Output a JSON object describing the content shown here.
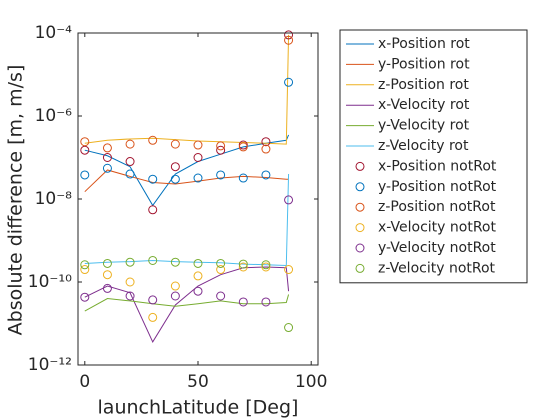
{
  "chart_data": {
    "type": "line",
    "xlabel": "launchLatitude [Deg]",
    "ylabel": "Absolute difference [m, m/s]",
    "log_y": true,
    "xlim": [
      -3,
      103
    ],
    "ylim": [
      1e-12,
      0.0001
    ],
    "xticks": [
      0,
      50,
      100
    ],
    "yticks": [
      {
        "value": 1e-12,
        "label": "10⁻¹²"
      },
      {
        "value": 1e-10,
        "label": "10⁻¹⁰"
      },
      {
        "value": 1e-08,
        "label": "10⁻⁸"
      },
      {
        "value": 1e-06,
        "label": "10⁻⁶"
      },
      {
        "value": 0.0001,
        "label": "10⁻⁴"
      }
    ],
    "legend": "outside-right",
    "series": [
      {
        "name": "x-Position rot",
        "color": "#0072BD",
        "style": "line",
        "x": [
          0,
          10,
          20,
          30,
          40,
          50,
          60,
          70,
          80,
          89,
          90
        ],
        "values": [
          1.5e-07,
          1.1e-07,
          6e-08,
          7e-09,
          4e-08,
          8e-08,
          1.2e-07,
          1.8e-07,
          2.2e-07,
          2.6e-07,
          3.5e-07
        ]
      },
      {
        "name": "y-Position rot",
        "color": "#D95319",
        "style": "line",
        "x": [
          0,
          10,
          20,
          30,
          40,
          50,
          60,
          70,
          80,
          89,
          90
        ],
        "values": [
          1.5e-08,
          5e-08,
          3.5e-08,
          2.5e-08,
          2.3e-08,
          2.7e-08,
          3.2e-08,
          3.5e-08,
          3.3e-08,
          3e-08,
          3e-08
        ]
      },
      {
        "name": "z-Position rot",
        "color": "#EDB120",
        "style": "line",
        "x": [
          0,
          10,
          20,
          30,
          40,
          50,
          60,
          70,
          80,
          89,
          90
        ],
        "values": [
          2.2e-07,
          2.6e-07,
          2.8e-07,
          2.9e-07,
          2.7e-07,
          2.5e-07,
          2.4e-07,
          2.3e-07,
          2.2e-07,
          2.1e-07,
          9e-05
        ]
      },
      {
        "name": "x-Velocity rot",
        "color": "#7E2F8E",
        "style": "line",
        "x": [
          0,
          10,
          20,
          30,
          40,
          50,
          60,
          70,
          80,
          89,
          90
        ],
        "values": [
          4.3e-11,
          8e-11,
          5.5e-11,
          3.6e-12,
          2.8e-11,
          8e-11,
          1.5e-10,
          2.2e-10,
          2.3e-10,
          2.2e-10,
          6e-11
        ]
      },
      {
        "name": "y-Velocity rot",
        "color": "#77AC30",
        "style": "line",
        "x": [
          0,
          10,
          20,
          30,
          40,
          50,
          60,
          70,
          80,
          89,
          90
        ],
        "values": [
          2e-11,
          4e-11,
          3.5e-11,
          3e-11,
          2.6e-11,
          3e-11,
          3.5e-11,
          3e-11,
          3e-11,
          3.2e-11,
          5e-11
        ]
      },
      {
        "name": "z-Velocity rot",
        "color": "#4DBEEE",
        "style": "line",
        "x": [
          0,
          10,
          20,
          30,
          40,
          50,
          60,
          70,
          80,
          89,
          90
        ],
        "values": [
          2.8e-10,
          3e-10,
          3.1e-10,
          3.3e-10,
          3.1e-10,
          3e-10,
          2.9e-10,
          2.7e-10,
          2.6e-10,
          2.5e-10,
          4e-08
        ]
      },
      {
        "name": "x-Position notRot",
        "color": "#A2142F",
        "style": "marker",
        "x": [
          0,
          10,
          20,
          30,
          40,
          50,
          60,
          70,
          80,
          90
        ],
        "values": [
          1.5e-07,
          1e-07,
          8e-08,
          5.5e-09,
          6e-08,
          1e-07,
          1.5e-07,
          2e-07,
          2.4e-07,
          9e-05
        ]
      },
      {
        "name": "y-Position notRot",
        "color": "#0072BD",
        "style": "marker",
        "x": [
          0,
          10,
          20,
          30,
          40,
          50,
          60,
          70,
          80,
          90
        ],
        "values": [
          3.8e-08,
          5.5e-08,
          4e-08,
          3e-08,
          3e-08,
          3.2e-08,
          3.8e-08,
          3.2e-08,
          3.8e-08,
          6.5e-06
        ]
      },
      {
        "name": "z-Position notRot",
        "color": "#D95319",
        "style": "marker",
        "x": [
          0,
          10,
          20,
          30,
          40,
          50,
          60,
          70,
          80,
          90
        ],
        "values": [
          2.4e-07,
          1.7e-07,
          2.1e-07,
          2.6e-07,
          2.1e-07,
          2e-07,
          1.9e-07,
          1.8e-07,
          1.6e-07,
          6.7e-05
        ]
      },
      {
        "name": "x-Velocity notRot",
        "color": "#EDB120",
        "style": "marker",
        "x": [
          0,
          10,
          20,
          30,
          40,
          50,
          60,
          70,
          80,
          90
        ],
        "values": [
          2e-10,
          1.5e-10,
          1e-10,
          1.4e-11,
          8e-11,
          1.4e-10,
          2e-10,
          2.3e-10,
          2.3e-10,
          2e-10
        ]
      },
      {
        "name": "y-Velocity notRot",
        "color": "#7E2F8E",
        "style": "marker",
        "x": [
          0,
          10,
          20,
          30,
          40,
          50,
          60,
          70,
          80,
          90
        ],
        "values": [
          4.3e-11,
          7e-11,
          4.6e-11,
          3.7e-11,
          4.6e-11,
          6e-11,
          4.6e-11,
          3.3e-11,
          3.3e-11,
          9.5e-09
        ]
      },
      {
        "name": "z-Velocity notRot",
        "color": "#77AC30",
        "style": "marker",
        "x": [
          0,
          10,
          20,
          30,
          40,
          50,
          60,
          70,
          80,
          90
        ],
        "values": [
          2.6e-10,
          2.8e-10,
          3e-10,
          3.3e-10,
          3e-10,
          2.8e-10,
          2.8e-10,
          2.7e-10,
          2.6e-10,
          8e-12
        ]
      }
    ]
  }
}
